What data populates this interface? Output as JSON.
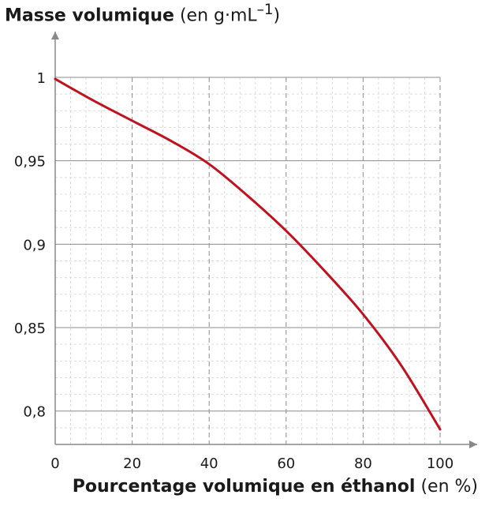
{
  "chart_data": {
    "type": "line",
    "ylabel": "Masse volumique",
    "ylabel_unit": "(en g·mL",
    "ylabel_unit_exp": "–1",
    "ylabel_unit_close": ")",
    "xlabel": "Pourcentage volumique en éthanol",
    "xlabel_unit": "(en %)",
    "xlim": [
      0,
      100
    ],
    "ylim": [
      0.78,
      1.0
    ],
    "x_ticks": [
      0,
      20,
      40,
      60,
      80,
      100
    ],
    "x_tick_labels": [
      "0",
      "20",
      "40",
      "60",
      "80",
      "100"
    ],
    "y_ticks": [
      0.8,
      0.85,
      0.9,
      0.95,
      1.0
    ],
    "y_tick_labels": [
      "0,8",
      "0,85",
      "0,9",
      "0,95",
      "1"
    ],
    "grid": true,
    "series": [
      {
        "color": "#c0111f",
        "x": [
          0,
          10,
          20,
          30,
          40,
          50,
          60,
          70,
          80,
          90,
          100
        ],
        "y": [
          0.999,
          0.986,
          0.974,
          0.962,
          0.948,
          0.929,
          0.908,
          0.884,
          0.858,
          0.827,
          0.789
        ]
      }
    ]
  }
}
